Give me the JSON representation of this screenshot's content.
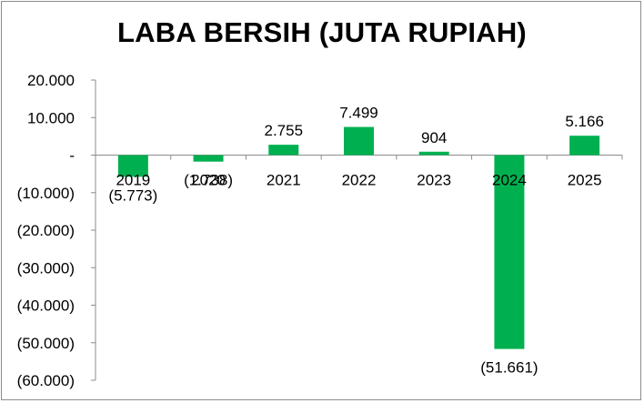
{
  "chart_data": {
    "type": "bar",
    "title": "LABA BERSIH (JUTA RUPIAH)",
    "xlabel": "",
    "ylabel": "",
    "categories": [
      "2019",
      "2020",
      "2021",
      "2022",
      "2023",
      "2024",
      "2025"
    ],
    "values": [
      -5773,
      -1738,
      2755,
      7499,
      904,
      -51661,
      5166
    ],
    "data_labels": [
      "(5.773)",
      "(1.738)",
      "2.755",
      "7.499",
      "904",
      "(51.661)",
      "5.166"
    ],
    "ylim": [
      -60000,
      20000
    ],
    "yticks": [
      20000,
      10000,
      0,
      -10000,
      -20000,
      -30000,
      -40000,
      -50000,
      -60000
    ],
    "ytick_labels": [
      "20.000",
      "10.000",
      "-",
      "(10.000)",
      "(20.000)",
      "(30.000)",
      "(40.000)",
      "(50.000)",
      "(60.000)"
    ],
    "bar_color": "#00b050",
    "grid": false,
    "legend": "none"
  }
}
